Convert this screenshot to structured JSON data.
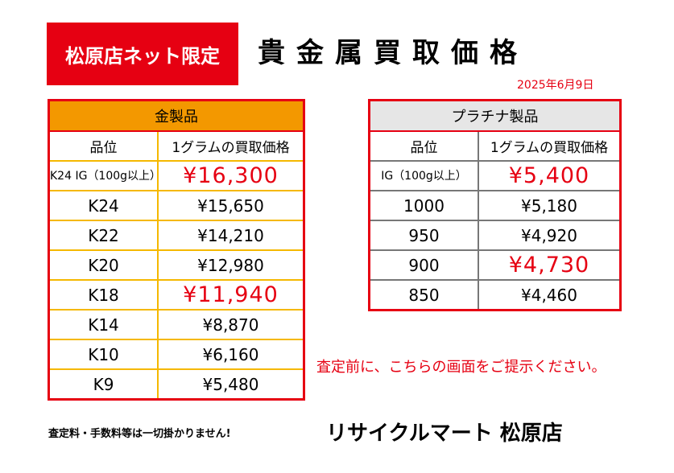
{
  "badge": "松原店ネット限定",
  "title": "貴金属買取価格",
  "date": "2025年6月9日",
  "gold": {
    "heading": "金製品",
    "col_grade": "品位",
    "col_price": "1グラムの買取価格",
    "rows": [
      {
        "grade": "K24 IG（100g以上）",
        "price": "¥16,300"
      },
      {
        "grade": "K24",
        "price": "¥15,650"
      },
      {
        "grade": "K22",
        "price": "¥14,210"
      },
      {
        "grade": "K20",
        "price": "¥12,980"
      },
      {
        "grade": "K18",
        "price": "¥11,940"
      },
      {
        "grade": "K14",
        "price": "¥8,870"
      },
      {
        "grade": "K10",
        "price": "¥6,160"
      },
      {
        "grade": "K9",
        "price": "¥5,480"
      }
    ]
  },
  "platinum": {
    "heading": "プラチナ製品",
    "col_grade": "品位",
    "col_price": "1グラムの買取価格",
    "rows": [
      {
        "grade": "IG（100g以上）",
        "price": "¥5,400"
      },
      {
        "grade": "1000",
        "price": "¥5,180"
      },
      {
        "grade": "950",
        "price": "¥4,920"
      },
      {
        "grade": "900",
        "price": "¥4,730"
      },
      {
        "grade": "850",
        "price": "¥4,460"
      }
    ]
  },
  "notice": "査定前に、こちらの画面をご提示ください。",
  "fine_print": "査定料・手数料等は一切掛かりません!",
  "shop_name": "リサイクルマート 松原店",
  "colors": {
    "accent_red": "#e60012",
    "gold_header": "#f39800",
    "gold_border": "#f5b800",
    "platinum_header": "#e6e6e6"
  }
}
